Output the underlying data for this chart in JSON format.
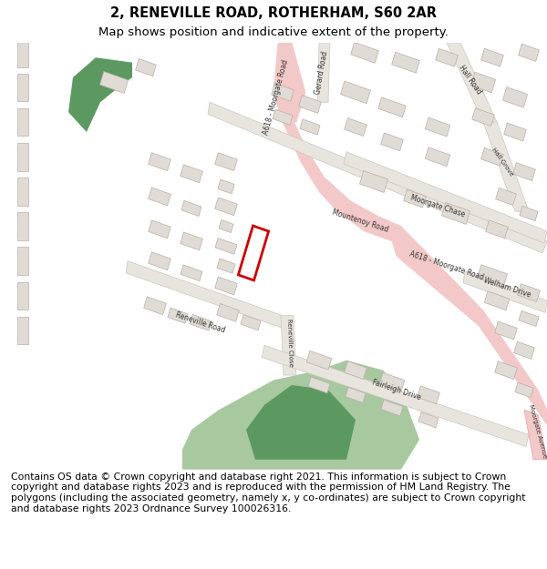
{
  "title_line1": "2, RENEVILLE ROAD, ROTHERHAM, S60 2AR",
  "title_line2": "Map shows position and indicative extent of the property.",
  "footer_text": "Contains OS data © Crown copyright and database right 2021. This information is subject to Crown copyright and database rights 2023 and is reproduced with the permission of HM Land Registry. The polygons (including the associated geometry, namely x, y co-ordinates) are subject to Crown copyright and database rights 2023 Ordnance Survey 100026316.",
  "title_fontsize": 10.5,
  "subtitle_fontsize": 9.5,
  "footer_fontsize": 7.8,
  "fig_width": 6.0,
  "fig_height": 6.25,
  "map_bg": "#f5f3f0",
  "road_pink_color": "#f2c8c8",
  "road_white_color": "#e8e4de",
  "building_fill": "#e0dbd4",
  "building_edge": "#b8b0a8",
  "green_dark": "#5c9960",
  "green_light": "#a8c8a0",
  "plot_rect_color": "#cc0000"
}
